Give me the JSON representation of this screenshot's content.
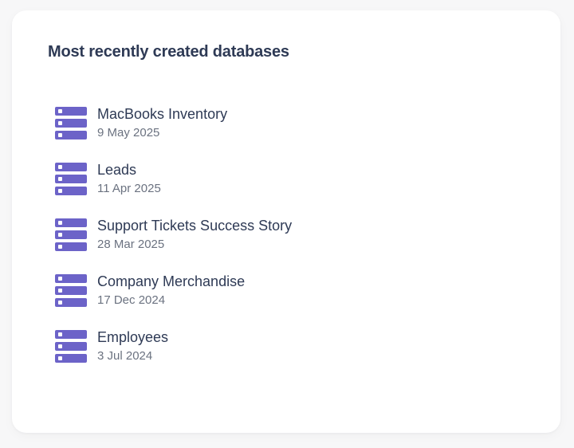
{
  "page": {
    "background_color": "#f7f7f8"
  },
  "card": {
    "title": "Most recently created databases",
    "background_color": "#ffffff",
    "title_color": "#2e3a55",
    "name_color": "#2e3a55",
    "date_color": "#6b7280",
    "accent_color": "#6c63c8",
    "icon": "database-stack-icon"
  },
  "databases": [
    {
      "name": "MacBooks Inventory",
      "created": "9 May 2025"
    },
    {
      "name": "Leads",
      "created": "11 Apr 2025"
    },
    {
      "name": "Support Tickets Success Story",
      "created": "28 Mar 2025"
    },
    {
      "name": "Company Merchandise",
      "created": "17 Dec 2024"
    },
    {
      "name": "Employees",
      "created": "3 Jul 2024"
    }
  ]
}
